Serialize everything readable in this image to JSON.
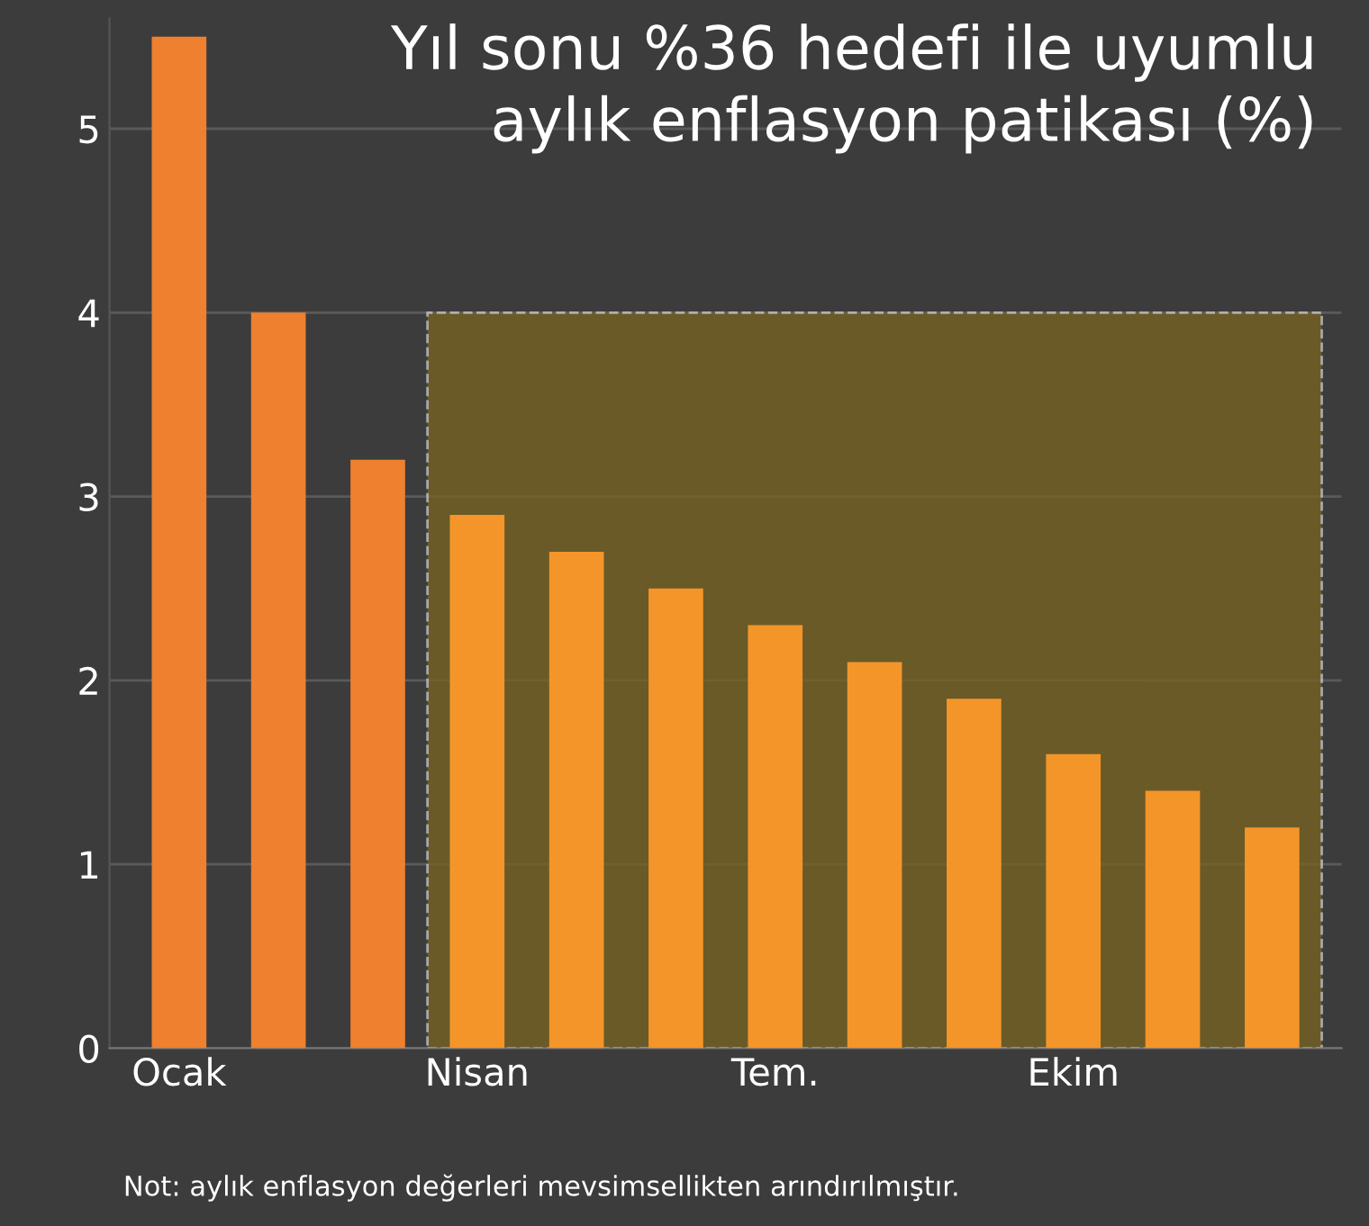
{
  "chart_data": {
    "type": "bar",
    "title": "Yıl sonu %36 hedefi ile uyumlu\naylık enflasyon patikası (%)",
    "categories": [
      "Ocak",
      null,
      null,
      "Nisan",
      null,
      null,
      "Tem.",
      null,
      null,
      "Ekim",
      null,
      null
    ],
    "values": [
      5.5,
      4.0,
      3.2,
      2.9,
      2.7,
      2.5,
      2.3,
      2.1,
      1.9,
      1.6,
      1.4,
      1.2
    ],
    "colors": [
      "#ee8030",
      "#ee8030",
      "#ee8030",
      "#f4952a",
      "#f4952a",
      "#f4952a",
      "#f4952a",
      "#f4952a",
      "#f4952a",
      "#f4952a",
      "#f4952a",
      "#f4952a"
    ],
    "ylim": [
      0,
      5.6
    ],
    "yticks": [
      0,
      1,
      2,
      3,
      4,
      5
    ],
    "grid": "y",
    "bands": [
      {
        "axis": "y",
        "from": 0,
        "to": 4,
        "color": "#7a6420"
      }
    ],
    "annotations": [
      "Not: aylık enflasyon değerleri mevsimsellikten arındırılmıştır."
    ]
  }
}
